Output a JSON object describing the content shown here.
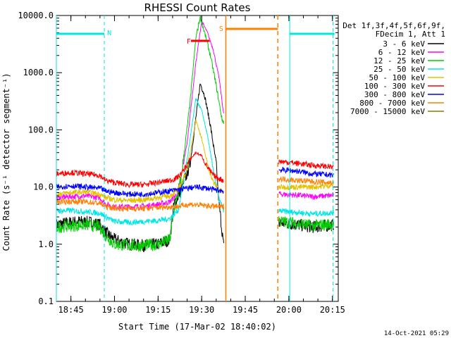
{
  "chart_data": {
    "type": "line",
    "title": "RHESSI Count Rates",
    "xlabel": "Start Time (17-Mar-02 18:40:02)",
    "ylabel": "Count Rate (s⁻¹ detector segment⁻¹)",
    "yscale": "log",
    "ylim": [
      0.1,
      10000
    ],
    "xlim_minutes": [
      0,
      97
    ],
    "x_unit": "minutes since 18:40:02",
    "x_ticks": [
      {
        "label": "18:45",
        "x": 5
      },
      {
        "label": "19:00",
        "x": 20
      },
      {
        "label": "19:15",
        "x": 35
      },
      {
        "label": "19:30",
        "x": 50
      },
      {
        "label": "19:45",
        "x": 65
      },
      {
        "label": "20:00",
        "x": 80
      },
      {
        "label": "20:15",
        "x": 95
      }
    ],
    "y_ticks": [
      "0.1",
      "1.0",
      "10.0",
      "100.0",
      "1000.0",
      "10000.0"
    ],
    "legend": {
      "header1": "Det 1f,3f,4f,5f,6f,9f,",
      "header2": "FDecim 1, Att 1",
      "placement": "right"
    },
    "series": [
      {
        "name": "3 - 6 keV",
        "color": "#000000",
        "values": [
          [
            0,
            2.2
          ],
          [
            2,
            2.3
          ],
          [
            5,
            2.4
          ],
          [
            8,
            2.5
          ],
          [
            12,
            2.4
          ],
          [
            15,
            2.2
          ],
          [
            17,
            1.6
          ],
          [
            20,
            1.2
          ],
          [
            25,
            1.0
          ],
          [
            30,
            0.95
          ],
          [
            35,
            1.0
          ],
          [
            39,
            1.2
          ],
          [
            40.5,
            5
          ],
          [
            43,
            9
          ],
          [
            46,
            25
          ],
          [
            49.5,
            650
          ],
          [
            51,
            400
          ],
          [
            53,
            120
          ],
          [
            55,
            25
          ],
          [
            56,
            5
          ],
          [
            57.5,
            1.0
          ],
          [
            58,
            0.5
          ],
          [
            77,
            2.4
          ],
          [
            83,
            2.2
          ],
          [
            88,
            2.0
          ],
          [
            93,
            2.1
          ],
          [
            95.5,
            2.2
          ]
        ]
      },
      {
        "name": "6 - 12 keV",
        "color": "#ff00ff",
        "values": [
          [
            0,
            6.5
          ],
          [
            5,
            6.8
          ],
          [
            10,
            7.0
          ],
          [
            15,
            6.5
          ],
          [
            17,
            5.0
          ],
          [
            20,
            4.5
          ],
          [
            25,
            4.5
          ],
          [
            30,
            4.6
          ],
          [
            35,
            5.0
          ],
          [
            39,
            5.5
          ],
          [
            42,
            8
          ],
          [
            45,
            60
          ],
          [
            48,
            1500
          ],
          [
            50,
            8000
          ],
          [
            52,
            5000
          ],
          [
            54,
            2500
          ],
          [
            56,
            800
          ],
          [
            57.5,
            200
          ],
          [
            58,
            150
          ],
          [
            77,
            7.5
          ],
          [
            83,
            7.2
          ],
          [
            88,
            6.8
          ],
          [
            93,
            7.0
          ],
          [
            95.5,
            7.2
          ]
        ]
      },
      {
        "name": "12 - 25 keV",
        "color": "#00cc00",
        "values": [
          [
            0,
            2.0
          ],
          [
            5,
            2.1
          ],
          [
            10,
            2.2
          ],
          [
            15,
            2.0
          ],
          [
            17,
            1.4
          ],
          [
            20,
            1.0
          ],
          [
            25,
            0.95
          ],
          [
            30,
            0.95
          ],
          [
            35,
            1.0
          ],
          [
            39,
            1.2
          ],
          [
            40.5,
            4
          ],
          [
            43,
            15
          ],
          [
            46,
            300
          ],
          [
            48,
            4000
          ],
          [
            49.5,
            9500
          ],
          [
            51,
            5000
          ],
          [
            53,
            2000
          ],
          [
            55,
            600
          ],
          [
            57,
            150
          ],
          [
            58,
            130
          ],
          [
            77,
            2.5
          ],
          [
            83,
            2.3
          ],
          [
            88,
            2.1
          ],
          [
            93,
            2.2
          ],
          [
            95.5,
            2.3
          ]
        ]
      },
      {
        "name": "25 - 50 keV",
        "color": "#00e5e5",
        "values": [
          [
            0,
            3.8
          ],
          [
            5,
            3.9
          ],
          [
            10,
            3.7
          ],
          [
            15,
            3.5
          ],
          [
            17,
            3.0
          ],
          [
            20,
            2.5
          ],
          [
            25,
            2.4
          ],
          [
            30,
            2.5
          ],
          [
            35,
            2.6
          ],
          [
            39,
            2.8
          ],
          [
            42,
            4
          ],
          [
            45,
            30
          ],
          [
            48,
            350
          ],
          [
            50,
            220
          ],
          [
            52,
            80
          ],
          [
            54,
            20
          ],
          [
            56,
            6
          ],
          [
            57.5,
            4
          ],
          [
            77,
            3.8
          ],
          [
            83,
            3.6
          ],
          [
            88,
            3.4
          ],
          [
            93,
            3.5
          ],
          [
            95.5,
            3.6
          ]
        ]
      },
      {
        "name": "50 - 100 keV",
        "color": "#e5c000",
        "values": [
          [
            0,
            7.5
          ],
          [
            5,
            8.0
          ],
          [
            10,
            8.2
          ],
          [
            15,
            7.5
          ],
          [
            17,
            6.5
          ],
          [
            20,
            6.0
          ],
          [
            25,
            5.8
          ],
          [
            30,
            6.0
          ],
          [
            35,
            6.5
          ],
          [
            39,
            7.0
          ],
          [
            42,
            9
          ],
          [
            45,
            20
          ],
          [
            48,
            150
          ],
          [
            50,
            70
          ],
          [
            52,
            25
          ],
          [
            54,
            12
          ],
          [
            56,
            9
          ],
          [
            57.5,
            8
          ],
          [
            77,
            10
          ],
          [
            83,
            10
          ],
          [
            88,
            10
          ],
          [
            93,
            10.5
          ],
          [
            95.5,
            11
          ]
        ]
      },
      {
        "name": "100 - 300 keV",
        "color": "#ff0000",
        "values": [
          [
            0,
            17
          ],
          [
            5,
            18
          ],
          [
            10,
            17
          ],
          [
            15,
            16
          ],
          [
            17,
            13
          ],
          [
            20,
            12
          ],
          [
            25,
            11
          ],
          [
            30,
            11
          ],
          [
            35,
            12
          ],
          [
            39,
            13
          ],
          [
            41,
            14
          ],
          [
            43,
            17
          ],
          [
            46,
            30
          ],
          [
            48,
            40
          ],
          [
            50,
            35
          ],
          [
            52,
            22
          ],
          [
            54,
            16
          ],
          [
            56,
            14
          ],
          [
            57.5,
            13
          ],
          [
            77,
            28
          ],
          [
            83,
            26
          ],
          [
            88,
            24
          ],
          [
            93,
            23
          ],
          [
            95.5,
            22
          ]
        ]
      },
      {
        "name": "300 - 800 keV",
        "color": "#0000ff",
        "values": [
          [
            0,
            10
          ],
          [
            5,
            10.5
          ],
          [
            10,
            10
          ],
          [
            15,
            9.5
          ],
          [
            17,
            8.5
          ],
          [
            20,
            8
          ],
          [
            25,
            7.5
          ],
          [
            30,
            7.5
          ],
          [
            35,
            8
          ],
          [
            39,
            8.5
          ],
          [
            42,
            9
          ],
          [
            45,
            9.5
          ],
          [
            48,
            10
          ],
          [
            52,
            9.5
          ],
          [
            54,
            9
          ],
          [
            57.5,
            8.5
          ],
          [
            77,
            20
          ],
          [
            83,
            19
          ],
          [
            88,
            17
          ],
          [
            93,
            16.5
          ],
          [
            95.5,
            16
          ]
        ]
      },
      {
        "name": "800 - 7000 keV",
        "color": "#ff8000",
        "values": [
          [
            0,
            5.5
          ],
          [
            5,
            5.6
          ],
          [
            10,
            5.5
          ],
          [
            15,
            5.2
          ],
          [
            17,
            4.5
          ],
          [
            20,
            4.3
          ],
          [
            25,
            4.2
          ],
          [
            30,
            4.2
          ],
          [
            35,
            4.4
          ],
          [
            39,
            4.5
          ],
          [
            42,
            4.6
          ],
          [
            46,
            5
          ],
          [
            50,
            4.8
          ],
          [
            54,
            4.6
          ],
          [
            57.5,
            4.5
          ],
          [
            77,
            14
          ],
          [
            83,
            13
          ],
          [
            88,
            12.5
          ],
          [
            93,
            12
          ],
          [
            95.5,
            12
          ]
        ]
      },
      {
        "name": "7000 - 15000 keV",
        "color": "#808000",
        "values": []
      }
    ],
    "annotations": [
      {
        "label": "N",
        "color": "#00e5e5"
      },
      {
        "label": "F",
        "color": "#ff0000"
      },
      {
        "label": "S",
        "color": "#ff8000"
      }
    ],
    "footer_timestamp": "14-Oct-2021 05:29"
  }
}
